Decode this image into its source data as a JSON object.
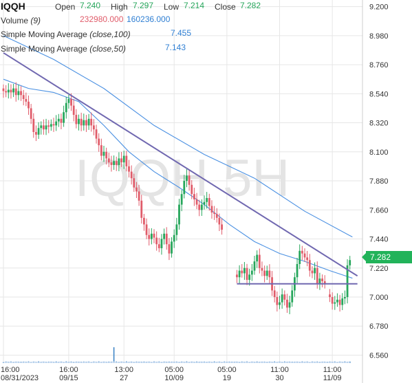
{
  "legend": {
    "symbol": "IQQH",
    "open_label": "Open",
    "open_value": "7.240",
    "high_label": "High",
    "high_value": "7.297",
    "low_label": "Low",
    "low_value": "7.214",
    "close_label": "Close",
    "close_value": "7.282",
    "volume_label": "Volume",
    "volume_param": "(9)",
    "volume_value_1": "232980.000",
    "volume_value_2": "160236.000",
    "sma100_label": "Simple Moving Average",
    "sma100_param": "(close,100)",
    "sma100_value": "7.455",
    "sma50_label": "Simple Moving Average",
    "sma50_param": "(close,50)",
    "sma50_value": "7.143"
  },
  "watermark": "IQQH 5H",
  "last_price_tag": "7.282",
  "colors": {
    "up": "#26a65b",
    "down": "#e05c6a",
    "sma": "#4a90e2",
    "trendline": "#7068b0",
    "grid": "#e6e6e6",
    "volume": "#3f86c7",
    "volume_fill": "#cfe0f2"
  },
  "chart_data": {
    "type": "candlestick",
    "y_axis": {
      "ticks": [
        "9.200",
        "8.980",
        "8.760",
        "8.540",
        "8.320",
        "8.100",
        "7.880",
        "7.660",
        "7.440",
        "7.220",
        "7.000",
        "6.780",
        "6.560"
      ],
      "range": [
        6.5,
        9.25
      ],
      "side": "right"
    },
    "x_axis": {
      "ticks": [
        {
          "i": 0,
          "top": "16:00",
          "bottom": "08/31/2023"
        },
        {
          "i": 26,
          "top": "16:00",
          "bottom": "09/15"
        },
        {
          "i": 48,
          "top": "13:00",
          "bottom": "27"
        },
        {
          "i": 68,
          "top": "05:00",
          "bottom": "10/09"
        },
        {
          "i": 89,
          "top": "05:00",
          "bottom": "19"
        },
        {
          "i": 110,
          "top": "11:00",
          "bottom": "30"
        },
        {
          "i": 131,
          "top": "11:00",
          "bottom": "11/09"
        }
      ]
    },
    "segments": [
      {
        "start": 0,
        "closes": [
          8.56,
          8.55,
          8.57,
          8.55,
          8.58,
          8.53,
          8.56,
          8.53,
          8.5,
          8.48,
          8.43,
          8.35,
          8.25,
          8.23,
          8.28,
          8.3,
          8.27,
          8.3,
          8.29,
          8.31,
          8.3,
          8.33,
          8.35,
          8.32,
          8.4,
          8.47,
          8.5,
          8.45,
          8.38,
          8.31,
          8.35,
          8.3,
          8.34,
          8.3,
          8.35,
          8.3,
          8.27,
          8.2,
          8.15,
          8.07,
          8.1,
          8.05,
          8.02,
          8.0,
          8.03,
          8.0,
          8.05,
          8.02,
          8.07,
          7.99,
          7.95,
          7.9,
          7.83,
          7.8,
          7.73,
          7.6,
          7.55,
          7.47,
          7.44,
          7.48,
          7.45,
          7.4,
          7.37,
          7.44,
          7.48,
          7.4,
          7.33,
          7.42,
          7.47,
          7.55,
          7.7,
          7.78,
          7.88,
          7.92,
          7.85,
          7.78,
          7.74,
          7.7,
          7.66,
          7.7,
          7.72,
          7.75,
          7.69,
          7.64,
          7.63,
          7.6,
          7.55,
          7.51
        ]
      },
      {
        "start": 93,
        "closes": [
          7.15,
          7.2,
          7.18,
          7.22,
          7.13,
          7.17,
          7.2,
          7.27,
          7.32,
          7.22,
          7.2,
          7.16,
          7.2,
          7.15,
          7.05,
          7.0,
          6.94,
          6.96,
          7.02,
          6.98,
          6.92,
          6.96,
          7.05,
          7.15,
          7.25,
          7.35,
          7.33,
          7.3,
          7.28,
          7.2,
          7.18,
          7.22,
          7.1,
          7.14,
          7.12,
          7.1
        ]
      },
      {
        "start": 130,
        "closes": [
          7.0,
          6.95,
          6.96,
          6.98,
          6.94,
          6.99,
          7.0,
          7.24,
          7.28
        ]
      }
    ],
    "series": [
      {
        "name": "Simple Moving Average (close,100)",
        "values": [
          {
            "i": 0,
            "v": 8.98
          },
          {
            "i": 20,
            "v": 8.8
          },
          {
            "i": 40,
            "v": 8.58
          },
          {
            "i": 60,
            "v": 8.3
          },
          {
            "i": 80,
            "v": 8.08
          },
          {
            "i": 100,
            "v": 7.9
          },
          {
            "i": 120,
            "v": 7.65
          },
          {
            "i": 139,
            "v": 7.455
          }
        ]
      },
      {
        "name": "Simple Moving Average (close,50)",
        "values": [
          {
            "i": 0,
            "v": 8.65
          },
          {
            "i": 10,
            "v": 8.58
          },
          {
            "i": 20,
            "v": 8.55
          },
          {
            "i": 30,
            "v": 8.48
          },
          {
            "i": 40,
            "v": 8.3
          },
          {
            "i": 50,
            "v": 8.1
          },
          {
            "i": 60,
            "v": 7.95
          },
          {
            "i": 70,
            "v": 7.83
          },
          {
            "i": 80,
            "v": 7.7
          },
          {
            "i": 90,
            "v": 7.55
          },
          {
            "i": 100,
            "v": 7.42
          },
          {
            "i": 110,
            "v": 7.33
          },
          {
            "i": 120,
            "v": 7.27
          },
          {
            "i": 130,
            "v": 7.2
          },
          {
            "i": 139,
            "v": 7.143
          }
        ]
      }
    ],
    "drawings": [
      {
        "type": "trendline",
        "from": {
          "i": 0,
          "v": 8.85
        },
        "to": {
          "i": 141,
          "v": 7.16
        }
      },
      {
        "type": "horizontal",
        "from": {
          "i": 93,
          "v": 7.1
        },
        "to": {
          "i": 141,
          "v": 7.1
        }
      }
    ],
    "volume": {
      "base": 6.5,
      "typical": 0.012,
      "spike": {
        "i": 44,
        "v": 0.12
      }
    }
  }
}
